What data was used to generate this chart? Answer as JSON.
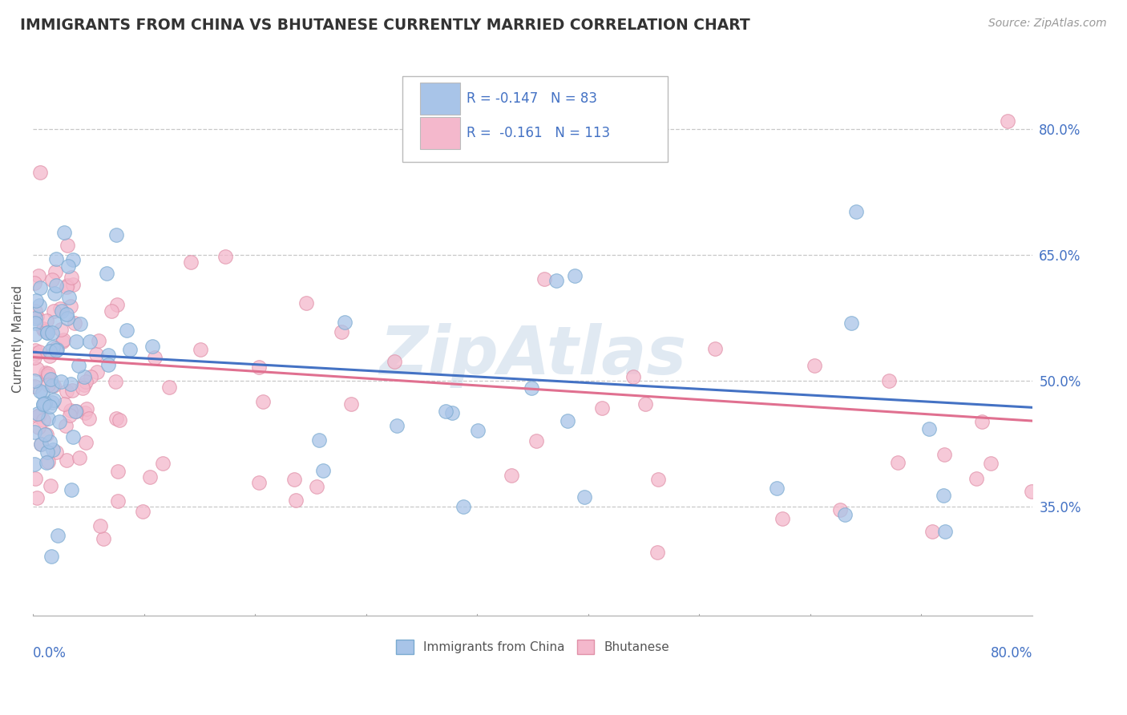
{
  "title": "IMMIGRANTS FROM CHINA VS BHUTANESE CURRENTLY MARRIED CORRELATION CHART",
  "source_text": "Source: ZipAtlas.com",
  "ylabel": "Currently Married",
  "y_ticks": [
    0.35,
    0.5,
    0.65,
    0.8
  ],
  "y_tick_labels": [
    "35.0%",
    "50.0%",
    "65.0%",
    "80.0%"
  ],
  "x_range": [
    0.0,
    0.8
  ],
  "y_range": [
    0.22,
    0.88
  ],
  "series": [
    {
      "name": "Immigrants from China",
      "color": "#a8c4e8",
      "edge_color": "#7aaad0",
      "line_color": "#4472c4",
      "R": -0.147,
      "N": 83
    },
    {
      "name": "Bhutanese",
      "color": "#f4b8cc",
      "edge_color": "#e090a8",
      "line_color": "#e07090",
      "R": -0.161,
      "N": 113
    }
  ],
  "watermark": "ZipAtlas",
  "legend_text_color": "#4472c4",
  "legend_label_color": "#333333",
  "background_color": "#ffffff",
  "grid_color": "#c8c8c8",
  "grid_style": "--",
  "trend_line_china_start_y": 0.534,
  "trend_line_china_end_y": 0.468,
  "trend_line_bhu_start_y": 0.528,
  "trend_line_bhu_end_y": 0.452
}
